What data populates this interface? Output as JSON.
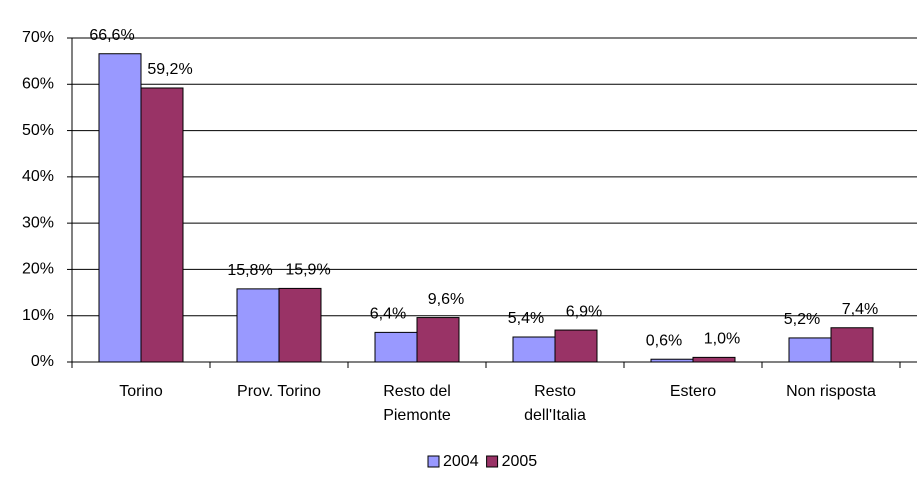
{
  "chart_data": {
    "type": "bar",
    "categories": [
      "Torino",
      "Prov. Torino",
      "Resto del\nPiemonte",
      "Resto\ndell'Italia",
      "Estero",
      "Non risposta"
    ],
    "series": [
      {
        "name": "2004",
        "color": "#9999ff",
        "values": [
          66.6,
          15.8,
          6.4,
          5.4,
          0.6,
          5.2
        ],
        "value_labels": [
          "66,6%",
          "15,8%",
          "6,4%",
          "5,4%",
          "0,6%",
          "5,2%"
        ]
      },
      {
        "name": "2005",
        "color": "#993366",
        "values": [
          59.2,
          15.9,
          9.6,
          6.9,
          1.0,
          7.4
        ],
        "value_labels": [
          "59,2%",
          "15,9%",
          "9,6%",
          "6,9%",
          "1,0%",
          "7,4%"
        ]
      }
    ],
    "ylim": [
      0,
      70
    ],
    "yticks": [
      {
        "value": 0,
        "label": "0%"
      },
      {
        "value": 10,
        "label": "10%"
      },
      {
        "value": 20,
        "label": "20%"
      },
      {
        "value": 30,
        "label": "30%"
      },
      {
        "value": 40,
        "label": "40%"
      },
      {
        "value": 50,
        "label": "50%"
      },
      {
        "value": 60,
        "label": "60%"
      },
      {
        "value": 70,
        "label": "70%"
      }
    ],
    "grid": true,
    "legend": "bottom"
  }
}
